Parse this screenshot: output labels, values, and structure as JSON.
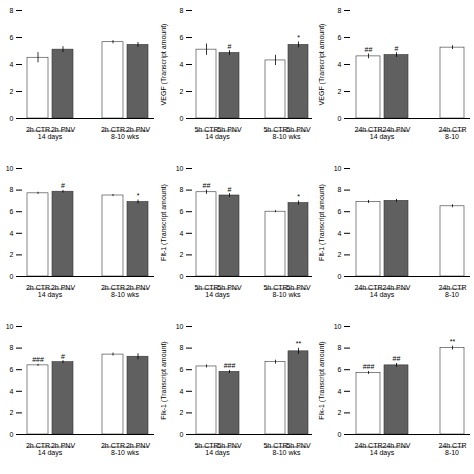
{
  "chart_data": [
    {
      "type": "bar",
      "ylim": [
        0,
        8
      ],
      "yticks": [
        0,
        2,
        4,
        6,
        8
      ],
      "groups": [
        {
          "label": "14 days",
          "categories": [
            "2h CTR",
            "2h PNV"
          ],
          "values": [
            4.5,
            5.1
          ],
          "errors": [
            0.38,
            0.22
          ],
          "colors": [
            "#ffffff",
            "#606060"
          ],
          "annotations": [
            null,
            null
          ]
        },
        {
          "label": "8-10 wks",
          "categories": [
            "2h CTR",
            "2h PNV"
          ],
          "values": [
            5.65,
            5.45
          ],
          "errors": [
            0.12,
            0.18
          ],
          "colors": [
            "#ffffff",
            "#606060"
          ],
          "annotations": [
            null,
            null
          ]
        }
      ]
    },
    {
      "type": "bar",
      "ylabel": "VEGF (Transcript amount)",
      "ylim": [
        0,
        8
      ],
      "yticks": [
        0,
        2,
        4,
        6,
        8
      ],
      "groups": [
        {
          "label": "14 days",
          "categories": [
            "5h CTR",
            "5h PNV"
          ],
          "values": [
            5.1,
            4.85
          ],
          "errors": [
            0.42,
            0.18
          ],
          "colors": [
            "#ffffff",
            "#606060"
          ],
          "annotations": [
            null,
            "#"
          ]
        },
        {
          "label": "8-10 wks",
          "categories": [
            "5h CTR",
            "5h PNV"
          ],
          "values": [
            4.3,
            5.45
          ],
          "errors": [
            0.38,
            0.22
          ],
          "colors": [
            "#ffffff",
            "#606060"
          ],
          "annotations": [
            null,
            "*"
          ]
        }
      ]
    },
    {
      "type": "bar",
      "ylabel": "VEGF (Transcript amount)",
      "ylim": [
        0,
        8
      ],
      "yticks": [
        0,
        2,
        4,
        6,
        8
      ],
      "groups": [
        {
          "label": "14 days",
          "categories": [
            "24h CTR",
            "24h PNV"
          ],
          "values": [
            4.6,
            4.7
          ],
          "errors": [
            0.18,
            0.18
          ],
          "colors": [
            "#ffffff",
            "#606060"
          ],
          "annotations": [
            "##",
            "#"
          ]
        },
        {
          "label": "8-10",
          "categories": [
            "24h CTR"
          ],
          "values": [
            5.25
          ],
          "errors": [
            0.14
          ],
          "colors": [
            "#ffffff"
          ],
          "annotations": [
            null
          ]
        }
      ]
    },
    {
      "type": "bar",
      "ylim": [
        0,
        10
      ],
      "yticks": [
        0,
        2,
        4,
        6,
        8,
        10
      ],
      "groups": [
        {
          "label": "14 days",
          "categories": [
            "2h CTR",
            "2h PNV"
          ],
          "values": [
            7.7,
            7.85
          ],
          "errors": [
            0.1,
            0.12
          ],
          "colors": [
            "#ffffff",
            "#606060"
          ],
          "annotations": [
            null,
            "#"
          ]
        },
        {
          "label": "8-10 wks",
          "categories": [
            "2h CTR",
            "2h PNV"
          ],
          "values": [
            7.5,
            6.9
          ],
          "errors": [
            0.1,
            0.18
          ],
          "colors": [
            "#ffffff",
            "#606060"
          ],
          "annotations": [
            null,
            "*"
          ]
        }
      ]
    },
    {
      "type": "bar",
      "ylabel": "Flt-1 (Transcript amount)",
      "ylim": [
        0,
        10
      ],
      "yticks": [
        0,
        2,
        4,
        6,
        8,
        10
      ],
      "groups": [
        {
          "label": "14 days",
          "categories": [
            "5h CTR",
            "5h PNV"
          ],
          "values": [
            7.8,
            7.5
          ],
          "errors": [
            0.2,
            0.18
          ],
          "colors": [
            "#ffffff",
            "#606060"
          ],
          "annotations": [
            "##",
            "#"
          ]
        },
        {
          "label": "8-10 wks",
          "categories": [
            "5h CTR",
            "5h PNV"
          ],
          "values": [
            6.0,
            6.8
          ],
          "errors": [
            0.1,
            0.18
          ],
          "colors": [
            "#ffffff",
            "#606060"
          ],
          "annotations": [
            null,
            "*"
          ]
        }
      ]
    },
    {
      "type": "bar",
      "ylabel": "Flt-1 (Transcript amount)",
      "ylim": [
        0,
        10
      ],
      "yticks": [
        0,
        2,
        4,
        6,
        8,
        10
      ],
      "groups": [
        {
          "label": "14 days",
          "categories": [
            "24h CTR",
            "24h PNV"
          ],
          "values": [
            6.9,
            7.0
          ],
          "errors": [
            0.14,
            0.14
          ],
          "colors": [
            "#ffffff",
            "#606060"
          ],
          "annotations": [
            null,
            null
          ]
        },
        {
          "label": "8-10",
          "categories": [
            "24h CTR"
          ],
          "values": [
            6.5
          ],
          "errors": [
            0.14
          ],
          "colors": [
            "#ffffff"
          ],
          "annotations": [
            null
          ]
        }
      ]
    },
    {
      "type": "bar",
      "ylim": [
        0,
        10
      ],
      "yticks": [
        0,
        2,
        4,
        6,
        8,
        10
      ],
      "groups": [
        {
          "label": "14 days",
          "categories": [
            "2h CTR",
            "2h PNV"
          ],
          "values": [
            6.4,
            6.7
          ],
          "errors": [
            0.1,
            0.14
          ],
          "colors": [
            "#ffffff",
            "#606060"
          ],
          "annotations": [
            "###",
            "#"
          ]
        },
        {
          "label": "8-10 wks",
          "categories": [
            "2h CTR",
            "2h PNV"
          ],
          "values": [
            7.4,
            7.2
          ],
          "errors": [
            0.14,
            0.28
          ],
          "colors": [
            "#ffffff",
            "#606060"
          ],
          "annotations": [
            null,
            null
          ]
        }
      ]
    },
    {
      "type": "bar",
      "ylabel": "Flk-1 (Transcript amount)",
      "ylim": [
        0,
        10
      ],
      "yticks": [
        0,
        2,
        4,
        6,
        8,
        10
      ],
      "groups": [
        {
          "label": "14 days",
          "categories": [
            "5h CTR",
            "5h PNV"
          ],
          "values": [
            6.3,
            5.8
          ],
          "errors": [
            0.14,
            0.14
          ],
          "colors": [
            "#ffffff",
            "#606060"
          ],
          "annotations": [
            null,
            "###"
          ]
        },
        {
          "label": "8-10 wks",
          "categories": [
            "5h CTR",
            "5h PNV"
          ],
          "values": [
            6.7,
            7.7
          ],
          "errors": [
            0.18,
            0.28
          ],
          "colors": [
            "#ffffff",
            "#606060"
          ],
          "annotations": [
            null,
            "**"
          ]
        }
      ]
    },
    {
      "type": "bar",
      "ylabel": "Flk-1 (Transcript amount)",
      "ylim": [
        0,
        10
      ],
      "yticks": [
        0,
        2,
        4,
        6,
        8,
        10
      ],
      "groups": [
        {
          "label": "14 days",
          "categories": [
            "24h CTR",
            "24h PNV"
          ],
          "values": [
            5.7,
            6.4
          ],
          "errors": [
            0.14,
            0.18
          ],
          "colors": [
            "#ffffff",
            "#606060"
          ],
          "annotations": [
            "###",
            "##"
          ]
        },
        {
          "label": "8-10",
          "categories": [
            "24h CTR"
          ],
          "values": [
            8.0
          ],
          "errors": [
            0.18
          ],
          "colors": [
            "#ffffff"
          ],
          "annotations": [
            "**"
          ]
        }
      ]
    }
  ]
}
